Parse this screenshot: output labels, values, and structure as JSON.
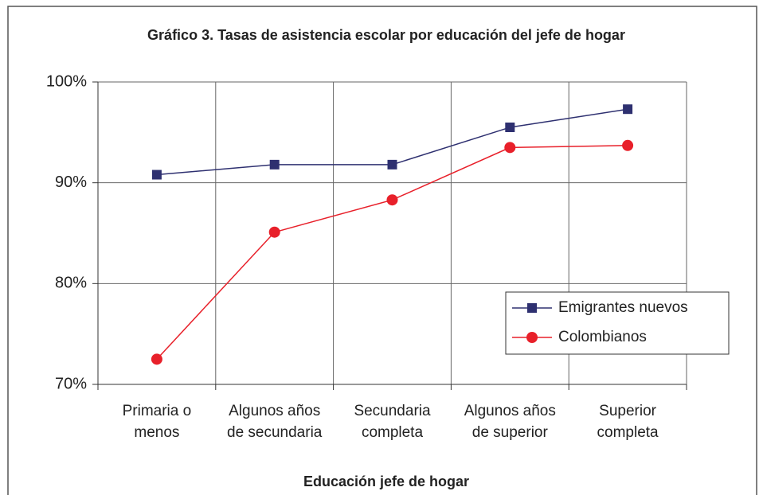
{
  "chart_data": {
    "type": "line",
    "title": "Gráfico 3. Tasas de asistencia escolar por educación del jefe de hogar",
    "x_label": "Educación jefe de hogar",
    "categories": [
      "Primaria o menos",
      "Algunos años de secundaria",
      "Secundaria completa",
      "Algunos años de superior",
      "Superior completa"
    ],
    "series": [
      {
        "name": "Emigrantes nuevos",
        "color": "#2e3070",
        "marker": "square",
        "values": [
          90.8,
          91.8,
          91.8,
          95.5,
          97.3
        ]
      },
      {
        "name": "Colombianos",
        "color": "#e8202a",
        "marker": "circle",
        "values": [
          72.5,
          85.1,
          88.3,
          93.5,
          93.7
        ]
      }
    ],
    "ylim": [
      70,
      100
    ],
    "yticks": [
      {
        "value": 70,
        "label": "70%"
      },
      {
        "value": 80,
        "label": "80%"
      },
      {
        "value": 90,
        "label": "90%"
      },
      {
        "value": 100,
        "label": "100%"
      }
    ],
    "grid": true,
    "legend_position": "right"
  }
}
